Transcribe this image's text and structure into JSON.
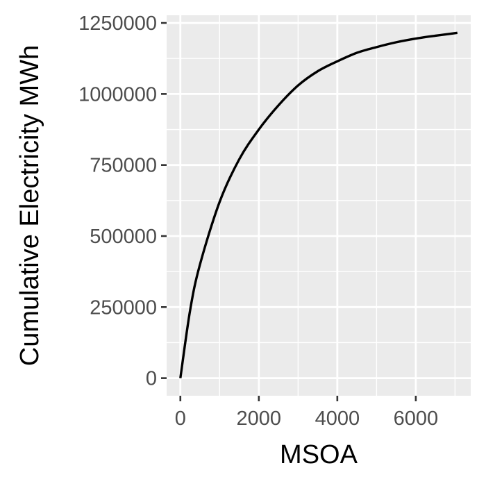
{
  "chart_data": {
    "type": "line",
    "title": "",
    "xlabel": "MSOA",
    "ylabel": "Cumulative Electricity MWh",
    "xlim": [
      -350,
      7400
    ],
    "ylim": [
      -62000,
      1277000
    ],
    "x_ticks": [
      0,
      2000,
      4000,
      6000
    ],
    "x_tick_labels": [
      "0",
      "2000",
      "4000",
      "6000"
    ],
    "y_ticks": [
      0,
      250000,
      500000,
      750000,
      1000000,
      1250000
    ],
    "y_tick_labels": [
      "0",
      "250000",
      "500000",
      "750000",
      "1000000",
      "1250000"
    ],
    "grid": true,
    "legend": "none",
    "colors": {
      "panel": "#ebebeb",
      "grid": "#ffffff",
      "line": "#000000",
      "tick_label": "#4d4d4d",
      "axis_title": "#000000"
    },
    "series": [
      {
        "x": [
          0,
          250,
          500,
          1000,
          1500,
          2000,
          2500,
          3000,
          3500,
          4000,
          4500,
          5000,
          5500,
          6000,
          6500,
          7060
        ],
        "values": [
          0,
          240000,
          400000,
          620000,
          770000,
          875000,
          960000,
          1030000,
          1080000,
          1115000,
          1145000,
          1165000,
          1182000,
          1195000,
          1205000,
          1215000
        ]
      }
    ]
  }
}
